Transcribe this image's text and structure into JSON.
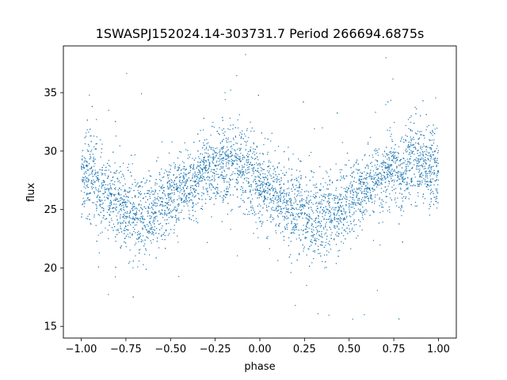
{
  "chart_data": {
    "type": "scatter",
    "title": "1SWASPJ152024.14-303731.7 Period 266694.6875s",
    "xlabel": "phase",
    "ylabel": "flux",
    "xlim": [
      -1.1,
      1.1
    ],
    "ylim": [
      14.0,
      39.0
    ],
    "x_ticks": [
      -1.0,
      -0.75,
      -0.5,
      -0.25,
      0.0,
      0.25,
      0.5,
      0.75,
      1.0
    ],
    "x_tick_labels": [
      "−1.00",
      "−0.75",
      "−0.50",
      "−0.25",
      "0.00",
      "0.25",
      "0.50",
      "0.75",
      "1.00"
    ],
    "y_ticks": [
      15,
      20,
      25,
      30,
      35
    ],
    "y_tick_labels": [
      "15",
      "20",
      "25",
      "30",
      "35"
    ],
    "grid": false,
    "legend": "none",
    "point_color": "#1f77b4",
    "series": [
      {
        "x": [
          -1.0,
          -0.95,
          -0.9,
          -0.85,
          -0.8,
          -0.75,
          -0.7,
          -0.65,
          -0.6,
          -0.55,
          -0.5,
          -0.45,
          -0.4,
          -0.35,
          -0.3,
          -0.25,
          -0.2,
          -0.15,
          -0.1,
          -0.05,
          0.0,
          0.05,
          0.1,
          0.15,
          0.2,
          0.25,
          0.3,
          0.35,
          0.4,
          0.45,
          0.5,
          0.55,
          0.6,
          0.65,
          0.7,
          0.75,
          0.8,
          0.85,
          0.9,
          0.95,
          1.0
        ],
        "y": [
          27.5,
          28.5,
          26.5,
          26.0,
          25.5,
          25.0,
          24.5,
          24.5,
          25.0,
          25.5,
          26.0,
          26.5,
          27.0,
          27.5,
          28.5,
          28.5,
          29.0,
          29.0,
          28.5,
          28.0,
          27.5,
          26.5,
          26.0,
          25.5,
          25.0,
          24.5,
          24.5,
          24.0,
          24.5,
          25.0,
          26.0,
          26.5,
          27.0,
          27.5,
          28.0,
          28.5,
          28.5,
          29.0,
          29.0,
          28.5,
          28.0
        ],
        "spread": [
          2.0,
          2.5,
          2.2,
          2.0,
          2.2,
          2.0,
          2.3,
          2.5,
          2.0,
          1.8,
          1.8,
          1.8,
          1.8,
          1.8,
          1.8,
          1.8,
          2.0,
          2.2,
          2.2,
          2.2,
          2.2,
          2.0,
          2.0,
          2.0,
          2.2,
          2.2,
          2.4,
          2.4,
          2.0,
          1.8,
          1.8,
          1.8,
          1.8,
          1.8,
          1.8,
          1.8,
          2.0,
          2.0,
          2.0,
          2.2,
          2.0
        ]
      }
    ]
  }
}
